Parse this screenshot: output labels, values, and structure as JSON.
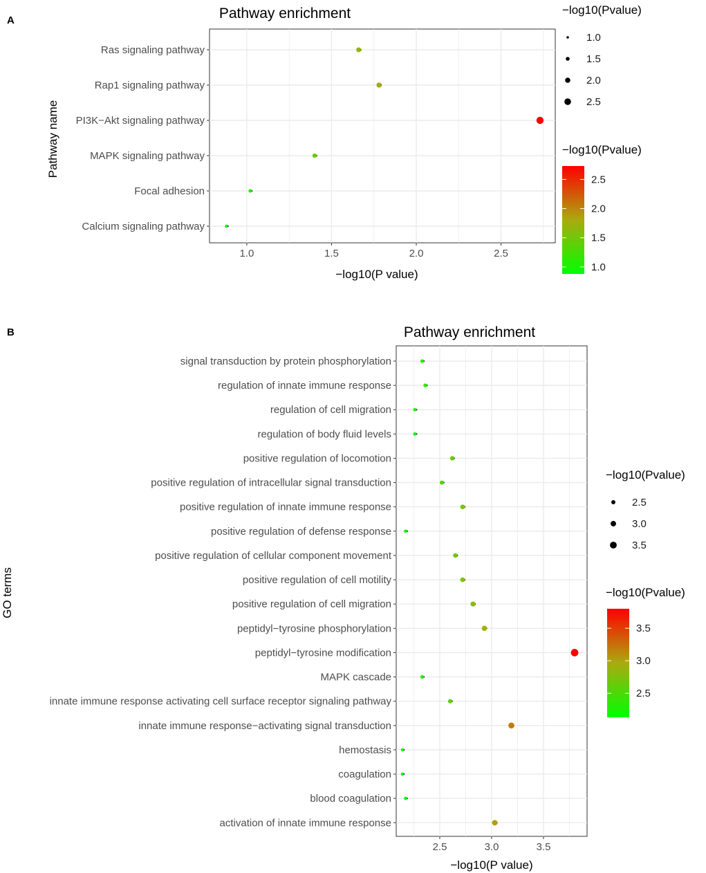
{
  "panel_labels": [
    "A",
    "B"
  ],
  "chart_data": [
    {
      "panel": "A",
      "type": "scatter",
      "title": "Pathway enrichment",
      "xlabel": "−log10(P value)",
      "ylabel": "Pathway name",
      "xlim": [
        0.78,
        2.82
      ],
      "x_ticks": [
        1.0,
        1.5,
        2.0,
        2.5
      ],
      "x_tick_labels": [
        "1.0",
        "1.5",
        "2.0",
        "2.5"
      ],
      "grid": true,
      "categories": [
        "Ras signaling pathway",
        "Rap1 signaling pathway",
        "PI3K−Akt signaling pathway",
        "MAPK signaling pathway",
        "Focal adhesion",
        "Calcium signaling pathway"
      ],
      "values": [
        1.66,
        1.78,
        2.73,
        1.4,
        1.02,
        0.88
      ],
      "size_legend": {
        "title": "−log10(Pvalue)",
        "breaks": [
          1.0,
          1.5,
          2.0,
          2.5
        ],
        "labels": [
          "1.0",
          "1.5",
          "2.0",
          "2.5"
        ]
      },
      "color_legend": {
        "title": "−log10(Pvalue)",
        "low_color": "#00ff00",
        "high_color": "#ff0000",
        "range": [
          0.88,
          2.73
        ],
        "breaks": [
          1.0,
          1.5,
          2.0,
          2.5
        ],
        "labels": [
          "1.0",
          "1.5",
          "2.0",
          "2.5"
        ]
      }
    },
    {
      "panel": "B",
      "type": "scatter",
      "title": "Pathway enrichment",
      "xlabel": "−log10(P value)",
      "ylabel": "GO terms",
      "xlim": [
        2.08,
        3.92
      ],
      "x_ticks": [
        2.5,
        3.0,
        3.5
      ],
      "x_tick_labels": [
        "2.5",
        "3.0",
        "3.5"
      ],
      "grid": true,
      "categories": [
        "signal transduction by protein phosphorylation",
        "regulation of innate immune response",
        "regulation of cell migration",
        "regulation of body fluid levels",
        "positive regulation of locomotion",
        "positive regulation of intracellular signal transduction",
        "positive regulation of innate immune response",
        "positive regulation of defense response",
        "positive regulation of cellular component movement",
        "positive regulation of cell motility",
        "positive regulation of cell migration",
        "peptidyl−tyrosine phosphorylation",
        "peptidyl−tyrosine modification",
        "MAPK cascade",
        "innate immune response activating cell surface receptor signaling pathway",
        "innate immune response−activating signal transduction",
        "hemostasis",
        "coagulation",
        "blood coagulation",
        "activation of innate immune response"
      ],
      "values": [
        2.33,
        2.36,
        2.26,
        2.26,
        2.62,
        2.52,
        2.72,
        2.17,
        2.65,
        2.72,
        2.82,
        2.93,
        3.8,
        2.33,
        2.6,
        3.19,
        2.14,
        2.14,
        2.17,
        3.03
      ],
      "size_legend": {
        "title": "−log10(Pvalue)",
        "breaks": [
          2.5,
          3.0,
          3.5
        ],
        "labels": [
          "2.5",
          "3.0",
          "3.5"
        ]
      },
      "color_legend": {
        "title": "−log10(Pvalue)",
        "low_color": "#00ff00",
        "high_color": "#ff0000",
        "range": [
          2.13,
          3.8
        ],
        "breaks": [
          2.5,
          3.0,
          3.5
        ],
        "labels": [
          "2.5",
          "3.0",
          "3.5"
        ]
      }
    }
  ]
}
